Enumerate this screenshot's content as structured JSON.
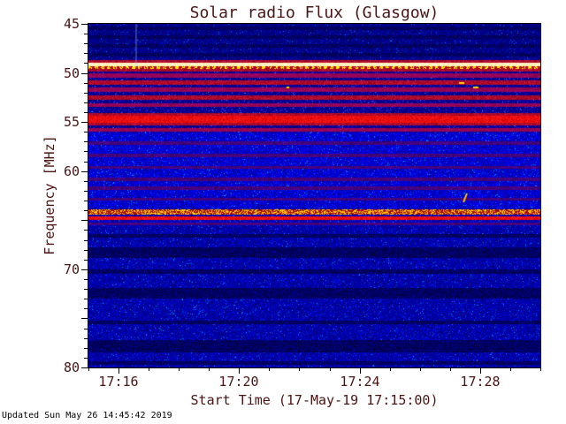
{
  "footer": {
    "updated": "Updated Sun May 26 14:45:42 2019"
  },
  "chart_data": {
    "type": "heatmap",
    "subtype": "radio-spectrogram",
    "title": "Solar radio Flux (Glasgow)",
    "xlabel": "Start Time (17-May-19 17:15:00)",
    "ylabel": "Frequency [MHz]",
    "x_range_minutes": [
      0,
      15
    ],
    "x_ticks": [
      {
        "label": "17:16",
        "minute": 1
      },
      {
        "label": "17:20",
        "minute": 5
      },
      {
        "label": "17:24",
        "minute": 9
      },
      {
        "label": "17:28",
        "minute": 13
      }
    ],
    "x_minor_step_minutes": 1,
    "y_range_mhz": [
      45,
      80
    ],
    "y_ticks": [
      {
        "label": "45",
        "mhz": 45
      },
      {
        "label": "50",
        "mhz": 50
      },
      {
        "label": "55",
        "mhz": 55
      },
      {
        "label": "60",
        "mhz": 60
      },
      {
        "label": "70",
        "mhz": 70
      },
      {
        "label": "80",
        "mhz": 80
      }
    ],
    "y_major_step_mhz": 5,
    "y_minor_step_mhz": 1,
    "colors": {
      "text": "#4a1414",
      "axis": "#000000",
      "background": "#ffffff",
      "base_blue": "#0000b4",
      "interference_red": "#e00000",
      "bright_band": "#fff0c8",
      "burst_yellow": "#ffd800"
    },
    "legend": "off",
    "grid": "off",
    "bands": [
      {
        "f1": 45.25,
        "f2": 45.65,
        "style": "dark"
      },
      {
        "f1": 46.15,
        "f2": 46.5,
        "style": "dark"
      },
      {
        "f1": 47.05,
        "f2": 47.45,
        "style": "dark"
      },
      {
        "f1": 47.95,
        "f2": 48.3,
        "style": "dark"
      },
      {
        "f1": 48.7,
        "f2": 48.95,
        "style": "darkred"
      },
      {
        "f1": 48.95,
        "f2": 49.3,
        "style": "white"
      },
      {
        "f1": 49.3,
        "f2": 49.6,
        "style": "yellow_dash"
      },
      {
        "f1": 49.6,
        "f2": 49.85,
        "style": "darkred"
      },
      {
        "f1": 50.05,
        "f2": 50.45,
        "style": "purple"
      },
      {
        "f1": 50.8,
        "f2": 51.2,
        "style": "darkred"
      },
      {
        "f1": 51.5,
        "f2": 51.95,
        "style": "purple"
      },
      {
        "f1": 52.3,
        "f2": 52.75,
        "style": "darkred"
      },
      {
        "f1": 53.1,
        "f2": 53.5,
        "style": "purple"
      },
      {
        "f1": 54.05,
        "f2": 54.35,
        "style": "darkred"
      },
      {
        "f1": 54.35,
        "f2": 55.05,
        "style": "red"
      },
      {
        "f1": 55.05,
        "f2": 55.35,
        "style": "darkred"
      },
      {
        "f1": 55.65,
        "f2": 55.95,
        "style": "purple"
      },
      {
        "f1": 56.95,
        "f2": 57.3,
        "style": "faint"
      },
      {
        "f1": 58.2,
        "f2": 58.55,
        "style": "faint"
      },
      {
        "f1": 59.45,
        "f2": 59.8,
        "style": "faint"
      },
      {
        "f1": 60.65,
        "f2": 61.0,
        "style": "faint"
      },
      {
        "f1": 61.6,
        "f2": 61.95,
        "style": "faint"
      },
      {
        "f1": 62.7,
        "f2": 63.0,
        "style": "faint"
      },
      {
        "f1": 63.85,
        "f2": 64.4,
        "style": "speckle"
      },
      {
        "f1": 64.65,
        "f2": 64.95,
        "style": "red"
      },
      {
        "f1": 65.25,
        "f2": 65.55,
        "style": "faint"
      },
      {
        "f1": 66.4,
        "f2": 66.8,
        "style": "dark"
      },
      {
        "f1": 67.8,
        "f2": 68.8,
        "style": "dark"
      },
      {
        "f1": 70.0,
        "f2": 70.5,
        "style": "dark"
      },
      {
        "f1": 71.9,
        "f2": 73.0,
        "style": "dark"
      },
      {
        "f1": 75.2,
        "f2": 75.6,
        "style": "dark"
      },
      {
        "f1": 77.2,
        "f2": 78.5,
        "style": "dark"
      },
      {
        "f1": 79.4,
        "f2": 79.7,
        "style": "dark"
      }
    ],
    "shading": [
      {
        "f1": 45.0,
        "f2": 48.7,
        "factor": 0.72
      },
      {
        "f1": 49.85,
        "f2": 56.1,
        "factor": 0.8,
        "tint": "red"
      },
      {
        "f1": 56.1,
        "f2": 63.7,
        "factor": 1.1
      },
      {
        "f1": 65.6,
        "f2": 80.0,
        "factor": 0.9
      }
    ],
    "events": [
      {
        "type": "vstreak",
        "minute": 1.55,
        "f1": 45.0,
        "f2": 49.5
      },
      {
        "type": "dot",
        "minute": 6.6,
        "mhz": 51.5
      },
      {
        "type": "dash",
        "minute": 12.4,
        "mhz": 51.0
      },
      {
        "type": "dash",
        "minute": 12.85,
        "mhz": 51.5
      },
      {
        "type": "streak",
        "minute": 12.5,
        "mhz": 62.7
      }
    ]
  }
}
